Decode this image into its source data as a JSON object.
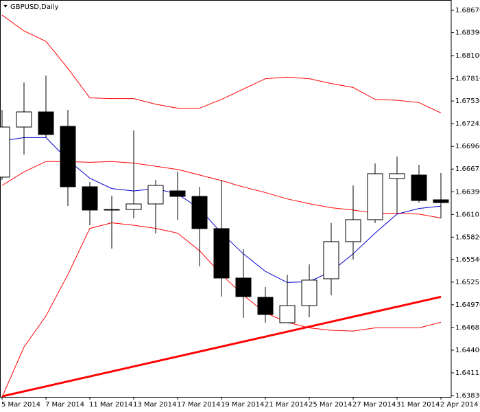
{
  "chart_data": {
    "type": "candlestick",
    "title": "GBPUSD,Daily",
    "categories": [
      "5 Mar 2014",
      null,
      "7 Mar 2014",
      null,
      "11 Mar 2014",
      null,
      "13 Mar 2014",
      null,
      "17 Mar 2014",
      null,
      "19 Mar 2014",
      null,
      "21 Mar 2014",
      null,
      "25 Mar 2014",
      null,
      "27 Mar 2014",
      null,
      "31 Mar 2014",
      null,
      "2 Apr 2014"
    ],
    "open": [
      1.66574,
      1.67203,
      1.67393,
      1.67212,
      1.66453,
      1.66168,
      1.66168,
      1.66237,
      1.66401,
      1.66332,
      1.65927,
      1.65306,
      1.65064,
      1.64745,
      1.6496,
      1.65297,
      1.65763,
      1.66039,
      1.66556,
      1.666,
      1.66289
    ],
    "high": [
      1.67419,
      1.67764,
      1.6785,
      1.67419,
      1.66513,
      1.66341,
      1.6716,
      1.66539,
      1.66643,
      1.66453,
      1.66539,
      1.65668,
      1.65193,
      1.65349,
      1.65478,
      1.65996,
      1.6647,
      1.66746,
      1.66832,
      1.66729,
      1.66625
    ],
    "low": [
      1.66539,
      1.66858,
      1.67074,
      1.66211,
      1.6597,
      1.65676,
      1.66056,
      1.65866,
      1.66039,
      1.65452,
      1.65073,
      1.64805,
      1.64745,
      1.64745,
      1.64814,
      1.6509,
      1.65538,
      1.65996,
      1.66125,
      1.66254,
      1.66056
    ],
    "close": [
      1.67203,
      1.67393,
      1.67109,
      1.66453,
      1.6616,
      1.6616,
      1.66237,
      1.6647,
      1.66332,
      1.65927,
      1.65306,
      1.65073,
      1.64848,
      1.6496,
      1.6528,
      1.65763,
      1.66039,
      1.66617,
      1.66617,
      1.6628,
      1.66254
    ],
    "up_color": "#ffffff",
    "down_color": "#000000",
    "lines": [
      {
        "color": "#ff0000",
        "values": [
          1.6861,
          1.6841,
          1.6828,
          1.6794,
          1.6757,
          1.6756,
          1.6756,
          1.6749,
          1.6744,
          1.6744,
          1.6755,
          1.6768,
          1.6781,
          1.6783,
          1.6781,
          1.6775,
          1.677,
          1.6755,
          1.6754,
          1.6751,
          1.6738
        ]
      },
      {
        "color": "#ff0000",
        "values": [
          1.6647,
          1.6664,
          1.6677,
          1.6677,
          1.6676,
          1.6677,
          1.6675,
          1.6671,
          1.6667,
          1.666,
          1.6653,
          1.6645,
          1.6638,
          1.663,
          1.6624,
          1.6619,
          1.6616,
          1.6612,
          1.6612,
          1.6611,
          1.6606
        ]
      },
      {
        "color": "#ff0000",
        "values": [
          1.6381,
          1.6444,
          1.6483,
          1.6535,
          1.6593,
          1.66,
          1.6597,
          1.6593,
          1.6587,
          1.6565,
          1.6535,
          1.6509,
          1.6487,
          1.6475,
          1.6468,
          1.6465,
          1.6464,
          1.6468,
          1.6468,
          1.6468,
          1.6475
        ]
      },
      {
        "color": "#0000cc",
        "values": [
          1.6703,
          1.6707,
          1.6707,
          1.6679,
          1.6656,
          1.6643,
          1.664,
          1.6643,
          1.6636,
          1.6618,
          1.6587,
          1.6561,
          1.6539,
          1.6525,
          1.6526,
          1.6539,
          1.6561,
          1.6587,
          1.6611,
          1.6618,
          1.6621
        ]
      }
    ],
    "trendline": {
      "color": "#ff0000",
      "values": [
        1.6382,
        1.6507
      ]
    },
    "ylim": [
      1.63813,
      1.68799
    ],
    "yticks": [
      {
        "value": 1.6867,
        "label": "1.68670"
      },
      {
        "value": 1.6839,
        "label": "1.68390"
      },
      {
        "value": 1.681,
        "label": "1.68100"
      },
      {
        "value": 1.6781,
        "label": "1.67810"
      },
      {
        "value": 1.6753,
        "label": "1.67530"
      },
      1.67245,
      {
        "value": 1.6696,
        "label": "1.66960"
      },
      1.66675,
      {
        "value": 1.6639,
        "label": "1.66390"
      },
      1.66105,
      {
        "value": 1.6582,
        "label": "1.65820"
      },
      {
        "value": 1.6554,
        "label": "1.65540"
      },
      1.65255,
      {
        "value": 1.6497,
        "label": "1.64970"
      },
      1.64685,
      {
        "value": 1.644,
        "label": "1.64400"
      },
      1.64115,
      {
        "value": 1.6383,
        "label": "1.63830"
      }
    ]
  }
}
